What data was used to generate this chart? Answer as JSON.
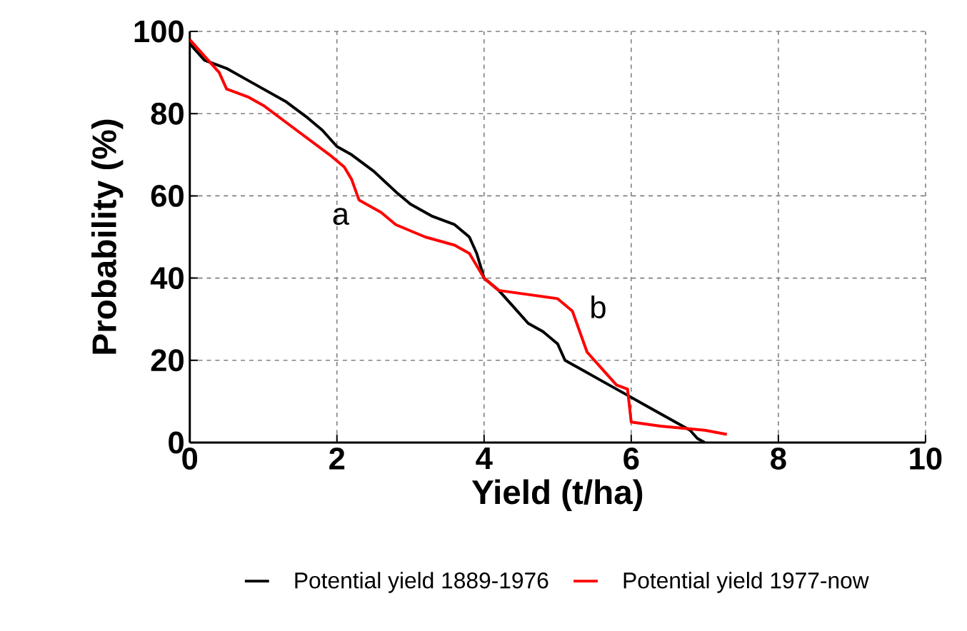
{
  "chart_data": {
    "type": "line",
    "xlabel": "Yield (t/ha)",
    "ylabel": "Probability (%)",
    "xlim": [
      0,
      10
    ],
    "ylim": [
      0,
      100
    ],
    "xticks": [
      0,
      2,
      4,
      6,
      8,
      10
    ],
    "yticks": [
      0,
      20,
      40,
      60,
      80,
      100
    ],
    "grid": true,
    "legend": "bottom",
    "marker": "none",
    "line_style": "solid",
    "annotations": [
      "a",
      "b"
    ],
    "series": [
      {
        "name": "Potential yield 1889-1976",
        "color": "#000000",
        "x": [
          0,
          0.2,
          0.5,
          0.8,
          1.0,
          1.3,
          1.6,
          1.8,
          2.0,
          2.2,
          2.5,
          2.8,
          3.0,
          3.3,
          3.6,
          3.8,
          3.9,
          4.0,
          4.2,
          4.4,
          4.6,
          4.8,
          5.0,
          5.1,
          5.3,
          5.6,
          5.9,
          6.2,
          6.5,
          6.8,
          6.9,
          7.0
        ],
        "values": [
          97,
          93,
          91,
          88,
          86,
          83,
          79,
          76,
          72,
          70,
          66,
          61,
          58,
          55,
          53,
          50,
          46,
          40,
          37,
          33,
          29,
          27,
          24,
          20,
          18,
          15,
          12,
          9,
          6,
          3,
          1,
          0
        ]
      },
      {
        "name": "Potential yield 1977-now",
        "color": "#ff0000",
        "x": [
          0,
          0.2,
          0.4,
          0.5,
          0.8,
          1.0,
          1.3,
          1.6,
          1.9,
          2.1,
          2.2,
          2.3,
          2.6,
          2.8,
          3.2,
          3.6,
          3.8,
          4.0,
          4.2,
          4.6,
          5.0,
          5.2,
          5.3,
          5.4,
          5.6,
          5.8,
          5.95,
          6.0,
          6.4,
          7.0,
          7.3
        ],
        "values": [
          98,
          94,
          90,
          86,
          84,
          82,
          78,
          74,
          70,
          67,
          64,
          59,
          56,
          53,
          50,
          48,
          46,
          40,
          37,
          36,
          35,
          32,
          27,
          22,
          18,
          14,
          13,
          5,
          4,
          3,
          2
        ]
      }
    ]
  }
}
